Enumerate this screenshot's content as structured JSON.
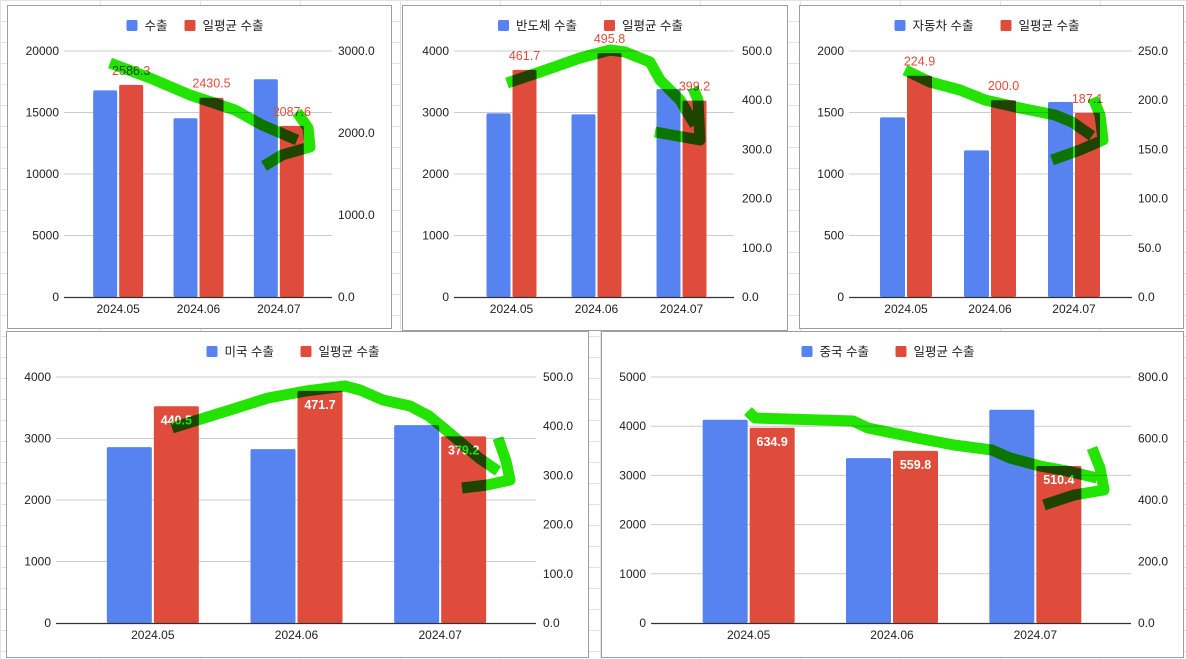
{
  "colors": {
    "primary_series": "#5683ef",
    "daily_avg_series": "#e04c3b",
    "annotation": "#22e400",
    "label_red": "#e04c3b"
  },
  "chart_data": [
    {
      "type": "bar",
      "title": "",
      "categories": [
        "2024.05",
        "2024.06",
        "2024.07"
      ],
      "series": [
        {
          "name": "수출",
          "axis": "left",
          "values": [
            16800,
            14530,
            17700
          ]
        },
        {
          "name": "일평균 수출",
          "axis": "right",
          "values": [
            2586.3,
            2430.5,
            2087.6
          ],
          "data_labels": [
            "2586.3",
            "2430.5",
            "2087.6"
          ]
        }
      ],
      "left_axis": {
        "range": [
          0,
          20000
        ],
        "ticks": [
          "0",
          "5000",
          "10000",
          "15000",
          "20000"
        ]
      },
      "right_axis": {
        "range": [
          0,
          3000
        ],
        "ticks": [
          "0.0",
          "1000.0",
          "2000.0",
          "3000.0"
        ]
      },
      "legend": "top",
      "grid": true,
      "data_label_style": "above"
    },
    {
      "type": "bar",
      "title": "",
      "categories": [
        "2024.05",
        "2024.06",
        "2024.07"
      ],
      "series": [
        {
          "name": "반도체 수출",
          "axis": "left",
          "values": [
            2985,
            2970,
            3380
          ]
        },
        {
          "name": "일평균 수출",
          "axis": "right",
          "values": [
            461.7,
            495.8,
            399.2
          ],
          "data_labels": [
            "461.7",
            "495.8",
            "399.2"
          ]
        }
      ],
      "left_axis": {
        "range": [
          0,
          4000
        ],
        "ticks": [
          "0",
          "1000",
          "2000",
          "3000",
          "4000"
        ]
      },
      "right_axis": {
        "range": [
          0,
          500
        ],
        "ticks": [
          "0.0",
          "100.0",
          "200.0",
          "300.0",
          "400.0",
          "500.0"
        ]
      },
      "legend": "top",
      "grid": true,
      "data_label_style": "above"
    },
    {
      "type": "bar",
      "title": "",
      "categories": [
        "2024.05",
        "2024.06",
        "2024.07"
      ],
      "series": [
        {
          "name": "자동차 수출",
          "axis": "left",
          "values": [
            1460,
            1192,
            1585
          ]
        },
        {
          "name": "일평균 수출",
          "axis": "right",
          "values": [
            224.9,
            200.0,
            187.1
          ],
          "data_labels": [
            "224.9",
            "200.0",
            "187.1"
          ]
        }
      ],
      "left_axis": {
        "range": [
          0,
          2000
        ],
        "ticks": [
          "0",
          "500",
          "1000",
          "1500",
          "2000"
        ]
      },
      "right_axis": {
        "range": [
          0,
          250
        ],
        "ticks": [
          "0.0",
          "50.0",
          "100.0",
          "150.0",
          "200.0",
          "250.0"
        ]
      },
      "legend": "top",
      "grid": true,
      "data_label_style": "above"
    },
    {
      "type": "bar",
      "title": "",
      "categories": [
        "2024.05",
        "2024.06",
        "2024.07"
      ],
      "series": [
        {
          "name": "미국 수출",
          "axis": "left",
          "values": [
            2860,
            2828,
            3218
          ]
        },
        {
          "name": "일평균 수출",
          "axis": "right",
          "values": [
            440.5,
            471.7,
            379.2
          ],
          "data_labels": [
            "440.5",
            "471.7",
            "379.2"
          ]
        }
      ],
      "left_axis": {
        "range": [
          0,
          4000
        ],
        "ticks": [
          "0",
          "1000",
          "2000",
          "3000",
          "4000"
        ]
      },
      "right_axis": {
        "range": [
          0,
          500
        ],
        "ticks": [
          "0.0",
          "100.0",
          "200.0",
          "300.0",
          "400.0",
          "500.0"
        ]
      },
      "legend": "top",
      "grid": true,
      "data_label_style": "inside"
    },
    {
      "type": "bar",
      "title": "",
      "categories": [
        "2024.05",
        "2024.06",
        "2024.07"
      ],
      "series": [
        {
          "name": "중국 수출",
          "axis": "left",
          "values": [
            4132,
            3351,
            4335
          ]
        },
        {
          "name": "일평균 수출",
          "axis": "right",
          "values": [
            634.9,
            559.8,
            510.4
          ],
          "data_labels": [
            "634.9",
            "559.8",
            "510.4"
          ]
        }
      ],
      "left_axis": {
        "range": [
          0,
          5000
        ],
        "ticks": [
          "0",
          "1000",
          "2000",
          "3000",
          "4000",
          "5000"
        ]
      },
      "right_axis": {
        "range": [
          0,
          800
        ],
        "ticks": [
          "0.0",
          "200.0",
          "400.0",
          "600.0",
          "800.0"
        ]
      },
      "legend": "top",
      "grid": true,
      "data_label_style": "inside"
    }
  ]
}
